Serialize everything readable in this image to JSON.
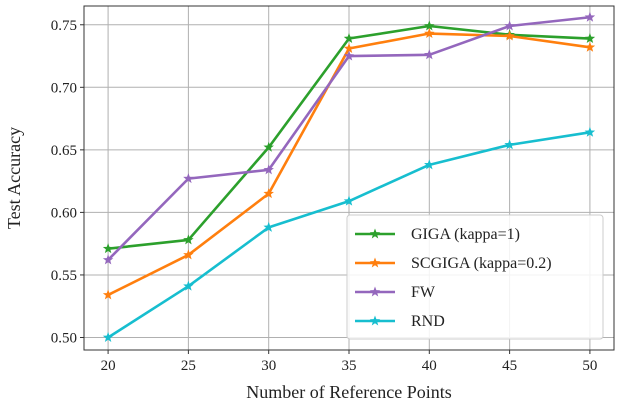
{
  "chart_data": {
    "type": "line",
    "title": "",
    "xlabel": "Number of Reference Points",
    "ylabel": "Test Accuracy",
    "x": [
      20,
      25,
      30,
      35,
      40,
      45,
      50
    ],
    "xlim": [
      18.5,
      51.5
    ],
    "ylim": [
      0.49,
      0.765
    ],
    "xticks": [
      20,
      25,
      30,
      35,
      40,
      45,
      50
    ],
    "xtick_labels": [
      "20",
      "25",
      "30",
      "35",
      "40",
      "45",
      "50"
    ],
    "yticks": [
      0.5,
      0.55,
      0.6,
      0.65,
      0.7,
      0.75
    ],
    "ytick_labels": [
      "0.50",
      "0.55",
      "0.60",
      "0.65",
      "0.70",
      "0.75"
    ],
    "grid": true,
    "legend_position": "lower-right",
    "series": [
      {
        "name": "GIGA (kappa=1)",
        "color": "#2ca02c",
        "marker": "star",
        "values": [
          0.571,
          0.578,
          0.652,
          0.739,
          0.749,
          0.742,
          0.739
        ]
      },
      {
        "name": "SCGIGA (kappa=0.2)",
        "color": "#ff7f0e",
        "marker": "star",
        "values": [
          0.534,
          0.566,
          0.615,
          0.731,
          0.743,
          0.741,
          0.732
        ]
      },
      {
        "name": "FW",
        "color": "#9467bd",
        "marker": "star",
        "values": [
          0.562,
          0.627,
          0.634,
          0.725,
          0.726,
          0.749,
          0.756
        ]
      },
      {
        "name": "RND",
        "color": "#17becf",
        "marker": "star",
        "values": [
          0.5,
          0.541,
          0.588,
          0.609,
          0.638,
          0.654,
          0.664
        ]
      }
    ]
  }
}
